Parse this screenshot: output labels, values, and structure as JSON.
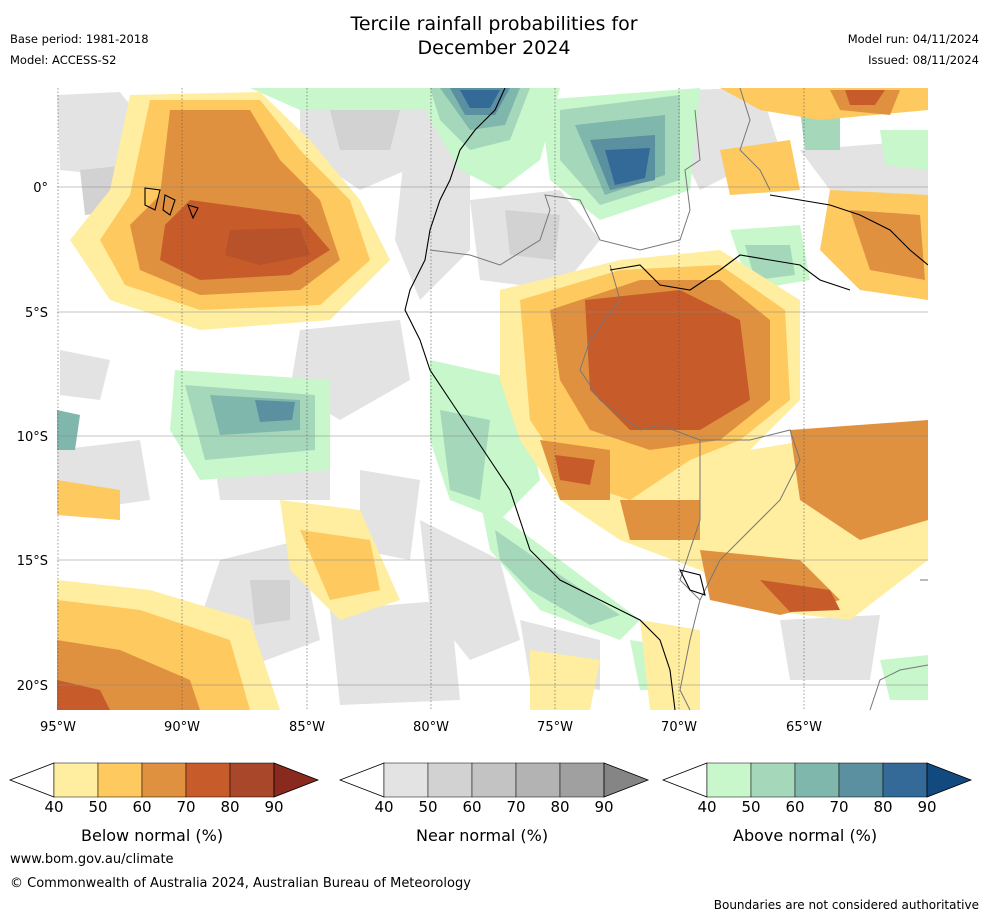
{
  "title_line1": "Tercile rainfall probabilities for",
  "title_line2": "December 2024",
  "base_period": "Base period: 1981-2018",
  "model": "Model: ACCESS-S2",
  "model_run": "Model run: 04/11/2024",
  "issued": "Issued: 08/11/2024",
  "lat_labels": [
    "0°",
    "5°S",
    "10°S",
    "15°S",
    "20°S"
  ],
  "lon_labels": [
    "95°W",
    "90°W",
    "85°W",
    "80°W",
    "75°W",
    "70°W",
    "65°W"
  ],
  "colorbars": [
    {
      "label": "Below normal (%)",
      "ticks": [
        "40",
        "50",
        "60",
        "70",
        "80",
        "90"
      ],
      "colors": [
        "#ffeda0",
        "#fec95f",
        "#e0913f",
        "#c75c2a",
        "#a8472a",
        "#8a2a1e"
      ]
    },
    {
      "label": "Near normal (%)",
      "ticks": [
        "40",
        "50",
        "60",
        "70",
        "80",
        "90"
      ],
      "colors": [
        "#e3e3e3",
        "#d2d2d2",
        "#c3c3c3",
        "#b3b3b3",
        "#a0a0a0",
        "#858585"
      ]
    },
    {
      "label": "Above normal (%)",
      "ticks": [
        "40",
        "50",
        "60",
        "70",
        "80",
        "90"
      ],
      "colors": [
        "#c7f7cb",
        "#a5d7bb",
        "#7fb7ad",
        "#5a90a0",
        "#336a98",
        "#124a80"
      ]
    }
  ],
  "footer_url": "www.bom.gov.au/climate",
  "copyright": "© Commonwealth of Australia 2024, Australian Bureau of Meteorology",
  "disclaimer": "Boundaries are not considered authoritative"
}
